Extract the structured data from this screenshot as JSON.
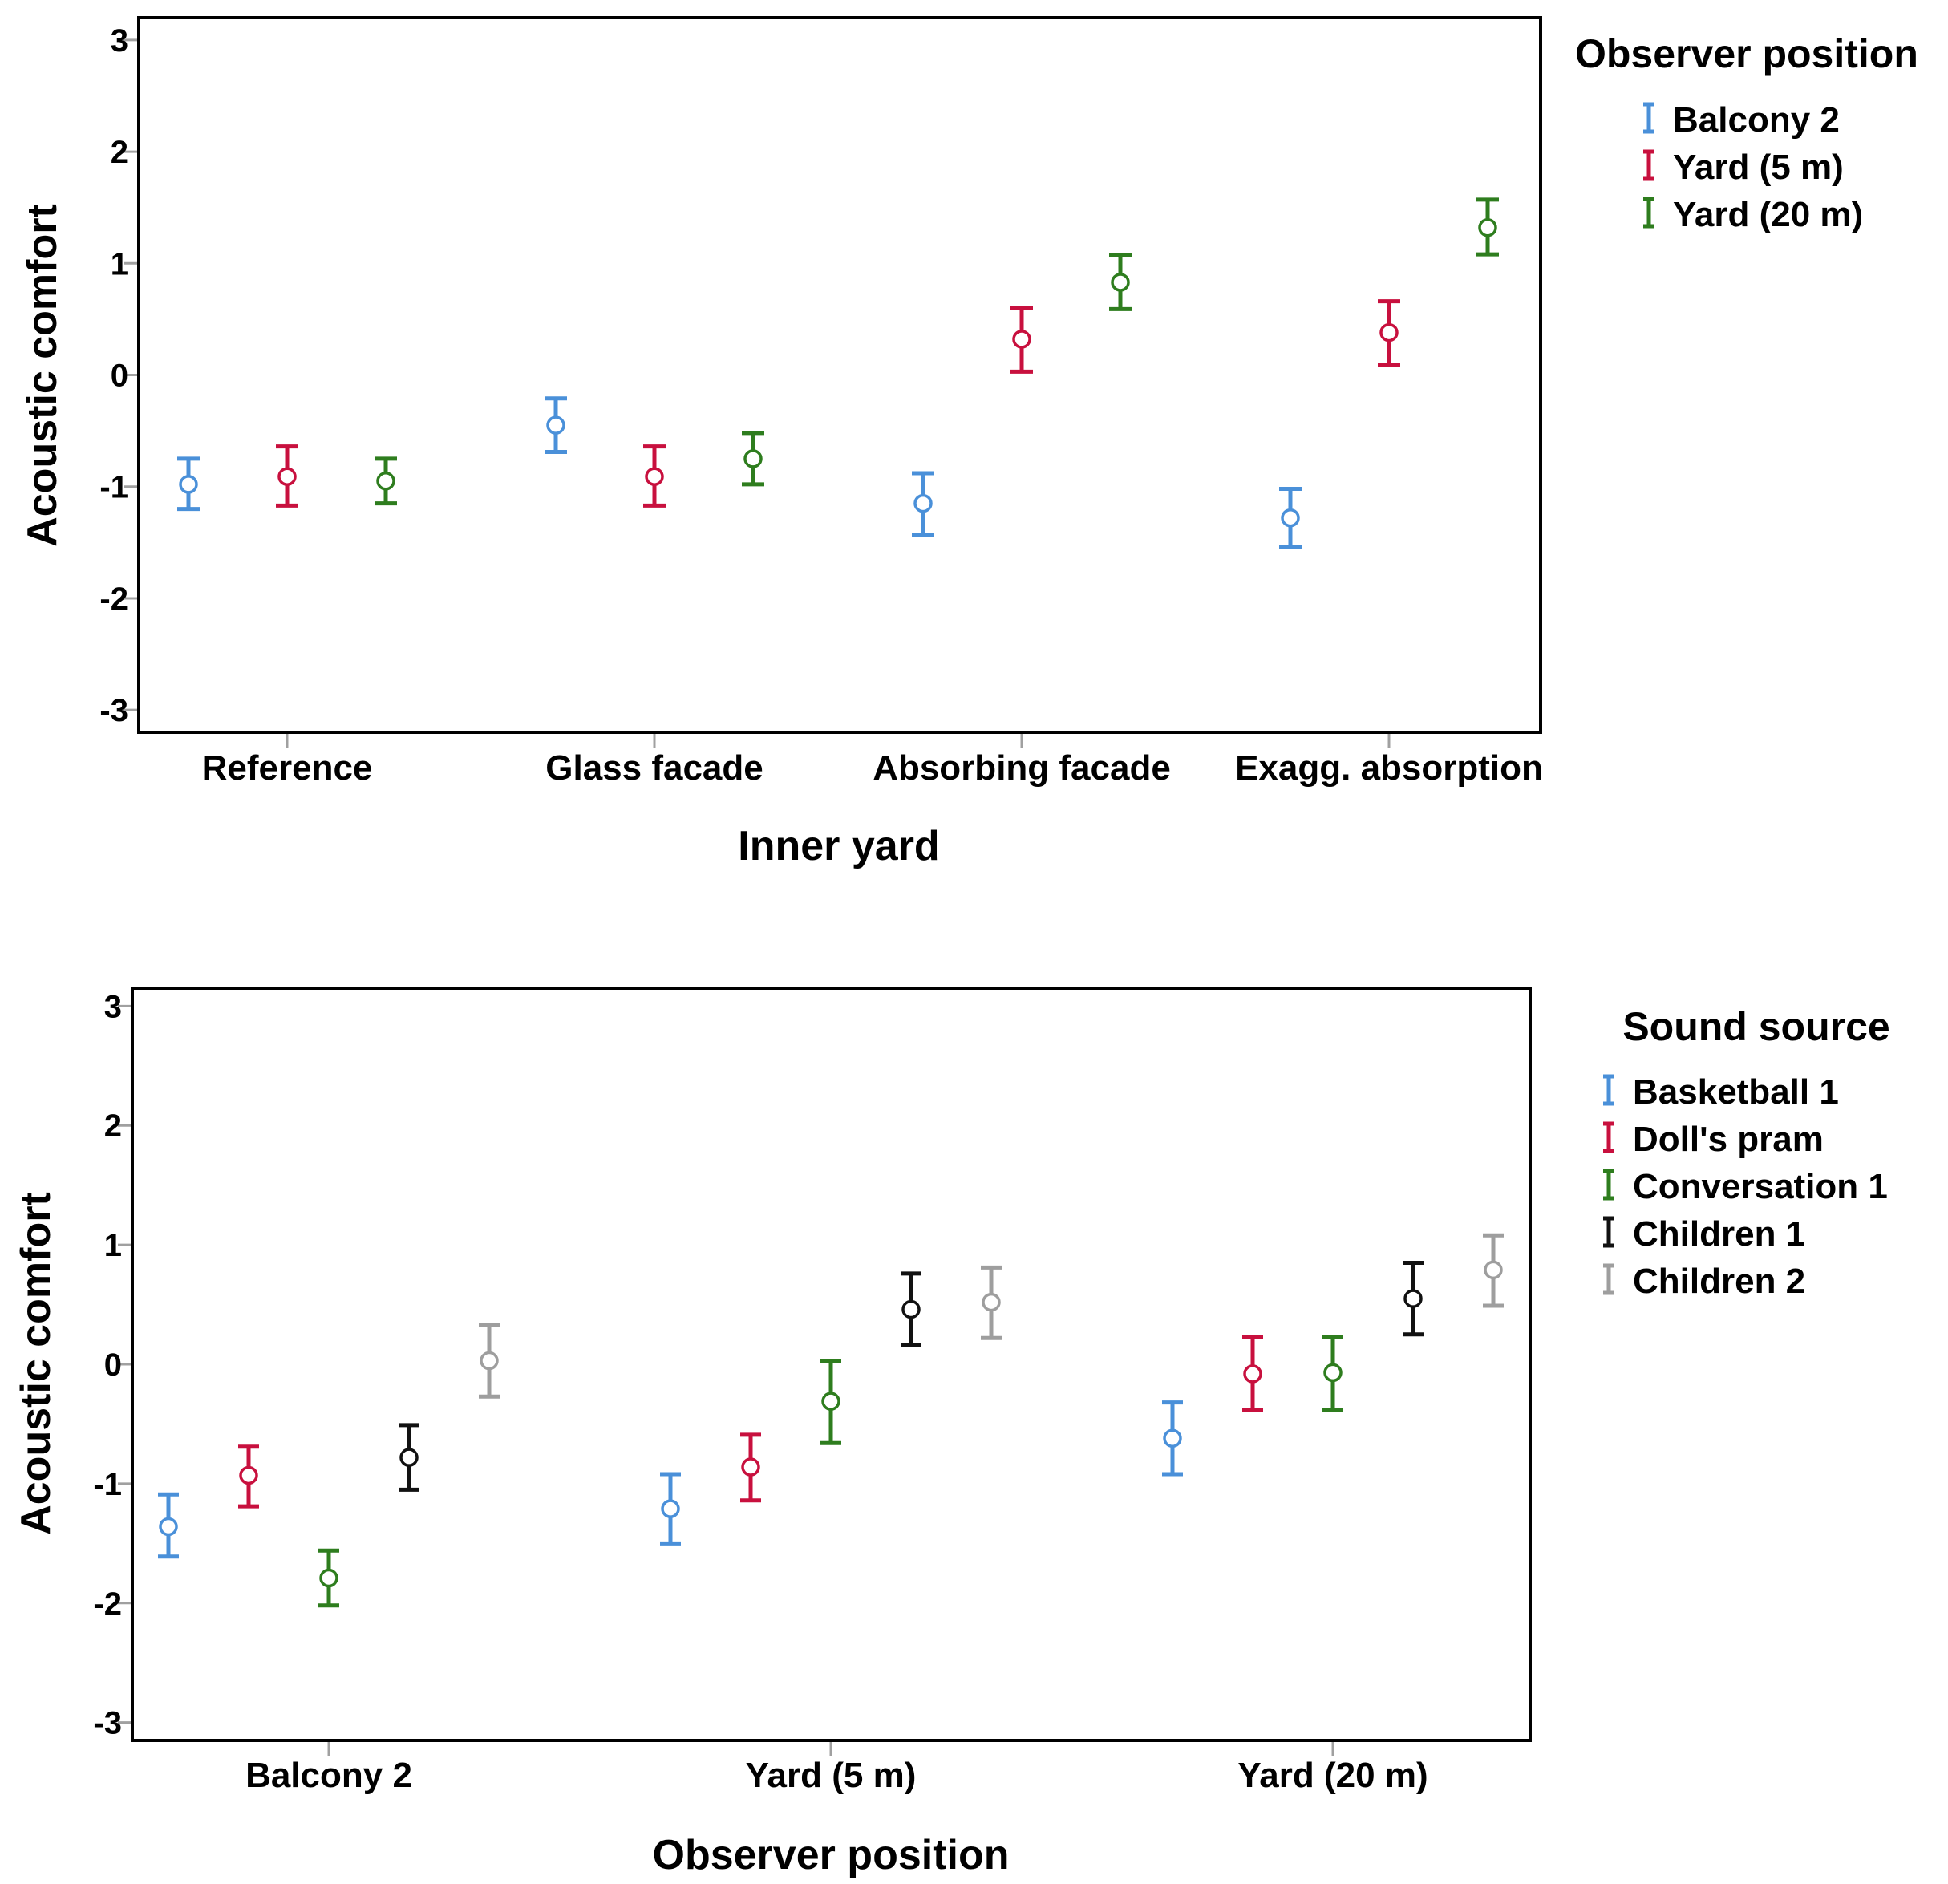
{
  "chart_data": [
    {
      "type": "errorbar",
      "xlabel": "Inner yard",
      "ylabel": "Acoustic comfort",
      "ylim": [
        -3.2,
        3.2
      ],
      "yticks": [
        3,
        2,
        1,
        0,
        -1,
        -2,
        -3
      ],
      "ytick_labels": [
        "3",
        "2",
        "1",
        "0",
        "-1",
        "-2",
        "-3"
      ],
      "grid": false,
      "categories": [
        "Reference",
        "Glass facade",
        "Absorbing facade",
        "Exagg. absorption"
      ],
      "legend": {
        "title": "Observer position",
        "placement": "right-top"
      },
      "series": [
        {
          "name": "Balcony 2",
          "color": "#4a90d9",
          "values": [
            -0.98,
            -0.45,
            -1.15,
            -1.28
          ],
          "lower": [
            -1.2,
            -0.69,
            -1.43,
            -1.54
          ],
          "upper": [
            -0.75,
            -0.21,
            -0.88,
            -1.02
          ]
        },
        {
          "name": "Yard (5 m)",
          "color": "#c8103e",
          "values": [
            -0.91,
            -0.91,
            0.32,
            0.38
          ],
          "lower": [
            -1.17,
            -1.17,
            0.03,
            0.09
          ],
          "upper": [
            -0.64,
            -0.64,
            0.6,
            0.66
          ]
        },
        {
          "name": "Yard (20 m)",
          "color": "#2e7d1e",
          "values": [
            -0.95,
            -0.75,
            0.83,
            1.32
          ],
          "lower": [
            -1.15,
            -0.98,
            0.59,
            1.08
          ],
          "upper": [
            -0.75,
            -0.52,
            1.07,
            1.57
          ]
        }
      ]
    },
    {
      "type": "errorbar",
      "xlabel": "Observer position",
      "ylabel": "Acoustic comfort",
      "ylim": [
        -3.15,
        3.15
      ],
      "yticks": [
        3,
        2,
        1,
        0,
        -1,
        -2,
        -3
      ],
      "ytick_labels": [
        "3",
        "2",
        "1",
        "0",
        "-1",
        "-2",
        "-3"
      ],
      "grid": false,
      "categories": [
        "Balcony 2",
        "Yard (5 m)",
        "Yard (20 m)"
      ],
      "legend": {
        "title": "Sound source",
        "placement": "right-top"
      },
      "series": [
        {
          "name": "Basketball 1",
          "color": "#4a90d9",
          "values": [
            -1.36,
            -1.21,
            -0.62
          ],
          "lower": [
            -1.61,
            -1.5,
            -0.92
          ],
          "upper": [
            -1.09,
            -0.92,
            -0.32
          ]
        },
        {
          "name": "Doll's pram",
          "color": "#c8103e",
          "values": [
            -0.93,
            -0.86,
            -0.08
          ],
          "lower": [
            -1.19,
            -1.14,
            -0.38
          ],
          "upper": [
            -0.69,
            -0.59,
            0.23
          ]
        },
        {
          "name": "Conversation 1",
          "color": "#2e7d1e",
          "values": [
            -1.79,
            -0.31,
            -0.07
          ],
          "lower": [
            -2.02,
            -0.66,
            -0.38
          ],
          "upper": [
            -1.56,
            0.03,
            0.23
          ]
        },
        {
          "name": "Children 1",
          "color": "#111111",
          "values": [
            -0.78,
            0.46,
            0.55
          ],
          "lower": [
            -1.05,
            0.16,
            0.25
          ],
          "upper": [
            -0.51,
            0.76,
            0.85
          ]
        },
        {
          "name": "Children 2",
          "color": "#9e9e9e",
          "values": [
            0.03,
            0.52,
            0.79
          ],
          "lower": [
            -0.27,
            0.22,
            0.49
          ],
          "upper": [
            0.33,
            0.81,
            1.08
          ]
        }
      ]
    }
  ]
}
